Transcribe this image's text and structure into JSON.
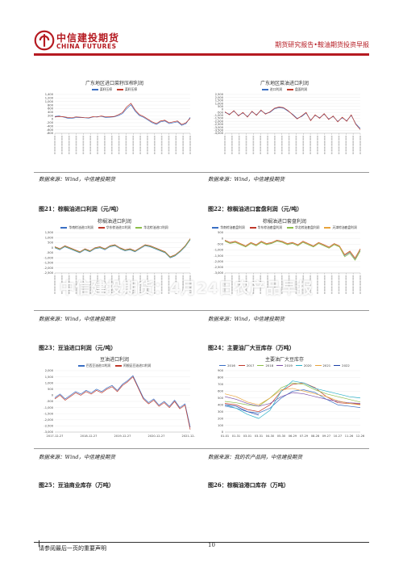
{
  "header": {
    "logo_cn": "中信建投期货",
    "logo_en": "CHINA FUTURES",
    "report_title": "期货研究报告•鞍油期货投资早报"
  },
  "watermark": "中信建投期货：4月24日农产品早报",
  "footer": {
    "disclaimer": "请参阅最后一页的重要声明",
    "page_number": "10"
  },
  "colors": {
    "brand_red": "#b51a21",
    "series_blue": "#3a6fc4",
    "series_red": "#c0392b",
    "series_green": "#8dbf4a",
    "series_orange": "#e8a33a"
  },
  "figures": [
    {
      "id": "fig-top-left",
      "title": "广东地区进口菜籽压榨利润",
      "legend": [
        "菜籽压榨",
        "菜籽压榨"
      ],
      "source": "数据来源：Wind，中信建投期货",
      "caption_below": "图21：棕榈油进口利润（元/吨）"
    },
    {
      "id": "fig-top-right",
      "title": "广东地区菜油进口利润",
      "legend": [
        "进口利润",
        "盘面利润"
      ],
      "source": "数据来源：Wind，中信建投期货",
      "caption_below": "图22：棕榈油进口套盘利润（元/吨）"
    },
    {
      "id": "fig-mid-left",
      "title": "棕榈油进口利润",
      "legend": [
        "华南棕油进口利润",
        "华东棕油进口利润",
        "华北棕油进口利润"
      ],
      "source": "数据来源：Wind，中信建投期货",
      "caption_below": "图23：豆油进口利润（元/吨）"
    },
    {
      "id": "fig-mid-right",
      "title": "棕榈油进口套盘利润",
      "legend": [
        "华南棕油套盘利润",
        "华东棕油套盘利润",
        "华北棕油套盘利润",
        "天津棕油套盘利润"
      ],
      "source": "数据来源：Wind，中信建投期货",
      "caption_below": "图24：主要油厂大豆库存（万吨）"
    },
    {
      "id": "fig-bot-left",
      "title": "豆油进口利润",
      "legend": [
        "巴西豆油进口利润",
        "阿根廷豆油进口利润"
      ],
      "source": "数据来源：Wind，中信建投期货",
      "caption_below": "图25：豆油商业库存（万吨）"
    },
    {
      "id": "fig-bot-right",
      "title": "主要油厂大豆库存",
      "legend": [
        "2016",
        "2017",
        "2018",
        "2019",
        "2020",
        "2021",
        "2022"
      ],
      "source": "数据来源：我的农产品网，中信建投期货",
      "caption_below": "图26：棕榈油港口库存（万吨）"
    }
  ],
  "chart_data": [
    {
      "type": "line",
      "title": "广东地区进口菜籽压榨利润",
      "y_ticks": [
        "1,400",
        "1,200",
        "1,000",
        "800",
        "600",
        "400",
        "200",
        "0",
        "-200",
        "-400",
        "-600",
        "-800"
      ],
      "ylim": [
        -800,
        1400
      ],
      "series": [
        {
          "name": "菜籽压榨",
          "values": [
            150,
            180,
            120,
            60,
            40,
            90,
            100,
            80,
            60,
            120,
            140,
            160,
            100,
            110,
            130,
            200,
            320,
            600,
            820,
            450,
            200,
            100,
            -50,
            -200,
            -300,
            -150,
            -100,
            -250,
            -200,
            -150,
            -350,
            -250,
            100
          ]
        },
        {
          "name": "菜籽压榨",
          "values": [
            120,
            150,
            140,
            100,
            80,
            130,
            110,
            90,
            80,
            140,
            120,
            180,
            130,
            140,
            150,
            250,
            380,
            700,
            900,
            520,
            260,
            150,
            0,
            -150,
            -250,
            -100,
            -60,
            -200,
            -150,
            -100,
            -300,
            -200,
            50
          ]
        }
      ]
    },
    {
      "type": "line",
      "title": "广东地区菜油进口利润",
      "y_ticks": [
        "2,500",
        "2,000",
        "1,500",
        "1,000",
        "500",
        "0",
        "-500",
        "-1,000",
        "-1,500",
        "-2,000",
        "-2,500",
        "-3,000",
        "-3,500",
        "-4,000"
      ],
      "ylim": [
        -4000,
        2500
      ],
      "series": [
        {
          "name": "进口利润",
          "values": [
            -500,
            -800,
            -300,
            -1000,
            -600,
            -1200,
            -400,
            -900,
            -200,
            -700,
            -500,
            100,
            300,
            200,
            -300,
            -800,
            -1500,
            -1200,
            -600,
            -1800,
            -1000,
            -1400,
            -800,
            -1600,
            -1200,
            -2000,
            -1400,
            -1900,
            -1000,
            -2400,
            -3200
          ]
        },
        {
          "name": "盘面利润",
          "values": [
            -400,
            -900,
            -200,
            -1100,
            -500,
            -1300,
            -300,
            -1000,
            -100,
            -800,
            -400,
            200,
            400,
            300,
            -200,
            -900,
            -1600,
            -1100,
            -500,
            -1900,
            -900,
            -1500,
            -700,
            -1700,
            -1100,
            -2100,
            -1300,
            -2000,
            -900,
            -2500,
            -3400
          ]
        }
      ]
    },
    {
      "type": "line",
      "title": "棕榈油进口利润",
      "y_ticks": [
        "1,500",
        "1,000",
        "500",
        "0",
        "-500",
        "-1,000",
        "-1,500",
        "-2,000",
        "-2,500"
      ],
      "ylim": [
        -2500,
        1500
      ],
      "series": [
        {
          "name": "华南棕油进口利润",
          "values": [
            0,
            -200,
            100,
            -100,
            -300,
            -500,
            -200,
            -400,
            -100,
            0,
            -200,
            100,
            200,
            -100,
            -300,
            -200,
            -400,
            -100,
            200,
            100,
            -100,
            -300,
            -500,
            -1000,
            -800,
            -400,
            100,
            800
          ]
        },
        {
          "name": "华东棕油进口利润",
          "values": [
            100,
            -100,
            200,
            0,
            -200,
            -400,
            -100,
            -300,
            0,
            100,
            -100,
            200,
            300,
            0,
            -200,
            -100,
            -300,
            0,
            300,
            200,
            0,
            -200,
            -400,
            -900,
            -700,
            -300,
            200,
            900
          ]
        },
        {
          "name": "华北棕油进口利润",
          "values": [
            50,
            -150,
            150,
            -50,
            -250,
            -450,
            -150,
            -350,
            -50,
            50,
            -150,
            150,
            250,
            -50,
            -250,
            -150,
            -350,
            -50,
            250,
            150,
            -50,
            -250,
            -450,
            -950,
            -750,
            -350,
            150,
            850
          ]
        }
      ]
    },
    {
      "type": "line",
      "title": "棕榈油进口套盘利润",
      "y_ticks": [
        "500",
        "0",
        "-500",
        "-1,000",
        "-1,500",
        "-2,000",
        "-2,500",
        "-3,000"
      ],
      "ylim": [
        -3000,
        500
      ],
      "series": [
        {
          "name": "华南棕油套盘利润",
          "values": [
            -200,
            -400,
            -300,
            -500,
            -700,
            -400,
            -600,
            -300,
            -500,
            -400,
            -200,
            -300,
            -500,
            -400,
            -600,
            -300,
            -500,
            -700,
            -400,
            -600,
            -800,
            -500,
            -700,
            -1500,
            -1200,
            -1800,
            -1000
          ]
        },
        {
          "name": "华东棕油套盘利润",
          "values": [
            -150,
            -350,
            -250,
            -450,
            -650,
            -350,
            -550,
            -250,
            -450,
            -350,
            -150,
            -250,
            -450,
            -350,
            -550,
            -250,
            -450,
            -650,
            -350,
            -550,
            -750,
            -450,
            -650,
            -1400,
            -1100,
            -1700,
            -900
          ]
        },
        {
          "name": "华北棕油套盘利润",
          "values": [
            -250,
            -450,
            -350,
            -550,
            -750,
            -450,
            -650,
            -350,
            -550,
            -450,
            -250,
            -350,
            -550,
            -450,
            -650,
            -350,
            -550,
            -750,
            -450,
            -650,
            -850,
            -550,
            -750,
            -1600,
            -1300,
            -1900,
            -1100
          ]
        },
        {
          "name": "天津棕油套盘利润",
          "values": [
            -180,
            -380,
            -280,
            -480,
            -680,
            -380,
            -580,
            -280,
            -480,
            -380,
            -180,
            -280,
            -480,
            -380,
            -580,
            -280,
            -480,
            -680,
            -380,
            -580,
            -780,
            -480,
            -680,
            -1450,
            -1150,
            -1750,
            -950
          ]
        }
      ]
    },
    {
      "type": "line",
      "title": "豆油进口利润",
      "x_ticks": [
        "2017-12-27",
        "2018-12-27",
        "2019-12-27",
        "2020-12-27",
        "2021-12-27"
      ],
      "y_ticks": [
        "2,000",
        "1,500",
        "1,000",
        "500",
        "0",
        "-500",
        "-1,000",
        "-1,500",
        "-2,000",
        "-2,500",
        "-3,000"
      ],
      "ylim": [
        -3000,
        2000
      ],
      "series": [
        {
          "name": "巴西豆油进口利润",
          "values": [
            -200,
            100,
            -300,
            0,
            300,
            100,
            400,
            200,
            500,
            300,
            600,
            800,
            400,
            900,
            1200,
            1600,
            700,
            -200,
            -600,
            -300,
            -800,
            -500,
            -900,
            -400,
            -1000,
            -700,
            -2600
          ]
        },
        {
          "name": "阿根廷豆油进口利润",
          "values": [
            -300,
            0,
            -400,
            -100,
            200,
            0,
            300,
            100,
            400,
            200,
            500,
            700,
            300,
            800,
            1100,
            1500,
            600,
            -300,
            -700,
            -400,
            -900,
            -600,
            -1000,
            -500,
            -1100,
            -800,
            -2800
          ]
        }
      ]
    },
    {
      "type": "line",
      "title": "主要油厂大豆库存",
      "x_ticks": [
        "01-01",
        "01-31",
        "03-01",
        "03-31",
        "04-30",
        "05-30",
        "06-29",
        "07-29",
        "08-28",
        "09-27",
        "10-27",
        "11-26",
        "12-26"
      ],
      "y_ticks": [
        "900",
        "800",
        "700",
        "600",
        "500",
        "400",
        "300",
        "200",
        "100",
        "0"
      ],
      "ylim": [
        0,
        900
      ],
      "series": [
        {
          "name": "2016",
          "values": [
            380,
            350,
            300,
            280,
            350,
            500,
            600,
            620,
            580,
            480,
            400,
            380,
            360
          ]
        },
        {
          "name": "2017",
          "values": [
            420,
            400,
            330,
            300,
            400,
            600,
            700,
            720,
            650,
            520,
            430,
            420,
            410
          ]
        },
        {
          "name": "2018",
          "values": [
            450,
            430,
            400,
            380,
            500,
            650,
            720,
            700,
            620,
            560,
            520,
            480,
            440
          ]
        },
        {
          "name": "2019",
          "values": [
            520,
            480,
            420,
            380,
            420,
            520,
            580,
            560,
            520,
            480,
            450,
            430,
            420
          ]
        },
        {
          "name": "2020",
          "values": [
            400,
            350,
            260,
            200,
            320,
            600,
            750,
            720,
            640,
            600,
            560,
            520,
            500
          ]
        },
        {
          "name": "2021",
          "values": [
            560,
            520,
            440,
            400,
            500,
            620,
            640,
            600,
            560,
            520,
            460,
            420,
            400
          ]
        },
        {
          "name": "2022",
          "values": [
            400,
            380,
            300,
            250
          ]
        }
      ]
    }
  ]
}
